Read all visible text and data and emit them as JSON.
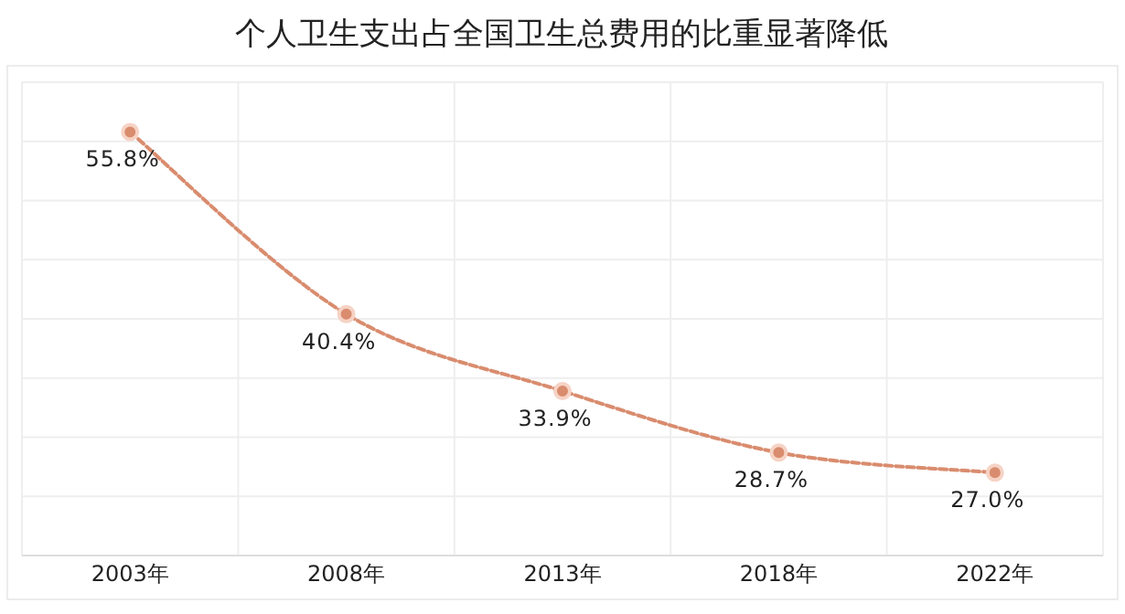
{
  "chart_data": {
    "type": "line",
    "title": "个人卫生支出占全国卫生总费用的比重显著降低",
    "categories": [
      "2003年",
      "2008年",
      "2013年",
      "2018年",
      "2022年"
    ],
    "values": [
      55.8,
      40.4,
      33.9,
      28.7,
      27.0
    ],
    "value_labels": [
      "55.8%",
      "40.4%",
      "33.9%",
      "28.7%",
      "27.0%"
    ],
    "color": "#d98c6e",
    "marker": "circle",
    "line_style": "dashed",
    "grid": true,
    "tick_labels": "x",
    "ylim": [
      20,
      60
    ],
    "yticks": [
      {
        "value": 20,
        "label": null
      },
      {
        "value": 25,
        "label": null
      },
      {
        "value": 30,
        "label": null
      },
      {
        "value": 35,
        "label": null
      },
      {
        "value": 40,
        "label": null
      },
      {
        "value": 45,
        "label": null
      },
      {
        "value": 50,
        "label": null
      },
      {
        "value": 55,
        "label": null
      },
      {
        "value": 60,
        "label": null
      }
    ]
  }
}
